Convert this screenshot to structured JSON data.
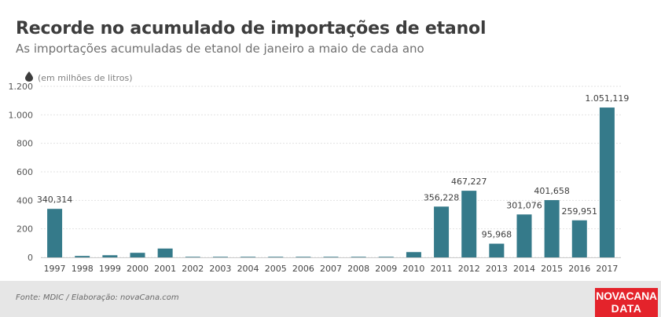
{
  "header": {
    "title": "Recorde no acumulado de importações de etanol",
    "subtitle": "As importações acumuladas de etanol de janeiro a maio de cada ano",
    "unit_label": "(em milhões de litros)",
    "unit_icon": "drop-icon"
  },
  "footer": {
    "source": "Fonte: MDIC / Elaboração: novaCana.com",
    "logo_line1": "NOVACANA",
    "logo_line2": "DATA"
  },
  "colors": {
    "bar": "#357a8a",
    "grid": "#e2e2e2",
    "logo": "#e4232b"
  },
  "chart_data": {
    "type": "bar",
    "title": "Recorde no acumulado de importações de etanol",
    "subtitle": "As importações acumuladas de etanol de janeiro a maio de cada ano",
    "ylabel": "(em milhões de litros)",
    "ylim": [
      0,
      1200
    ],
    "yticks": [
      0,
      200,
      400,
      600,
      800,
      1000,
      1200
    ],
    "ytick_labels": [
      "0",
      "200",
      "400",
      "600",
      "800",
      "1.000",
      "1.200"
    ],
    "grid": true,
    "categories": [
      "1997",
      "1998",
      "1999",
      "2000",
      "2001",
      "2002",
      "2003",
      "2004",
      "2005",
      "2006",
      "2007",
      "2008",
      "2009",
      "2010",
      "2011",
      "2012",
      "2013",
      "2014",
      "2015",
      "2016",
      "2017"
    ],
    "values": [
      340.314,
      10,
      15,
      32,
      62,
      4,
      4,
      4,
      4,
      4,
      4,
      4,
      4,
      37,
      356.228,
      467.227,
      95.968,
      301.076,
      401.658,
      259.951,
      1051.119
    ],
    "data_labels": [
      "340,314",
      null,
      null,
      null,
      null,
      null,
      null,
      null,
      null,
      null,
      null,
      null,
      null,
      null,
      "356,228",
      "467,227",
      "95,968",
      "301,076",
      "401,658",
      "259,951",
      "1.051,119"
    ]
  }
}
